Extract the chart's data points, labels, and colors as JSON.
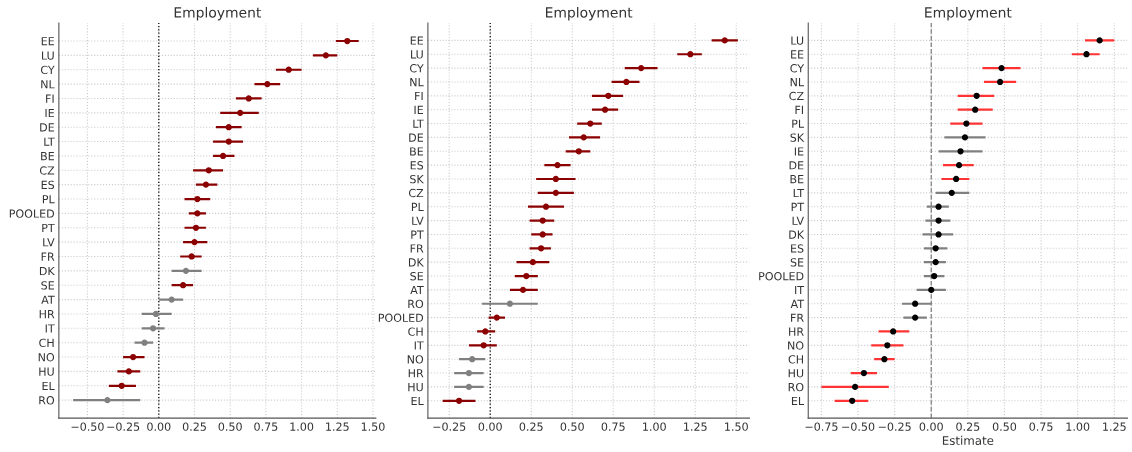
{
  "chart_data": [
    {
      "type": "scatter",
      "orientation": "horizontal",
      "title": "Employment",
      "marker": "circle",
      "grid": true,
      "categories": [
        "EE",
        "LU",
        "CY",
        "NL",
        "FI",
        "IE",
        "DE",
        "LT",
        "BE",
        "CZ",
        "ES",
        "PL",
        "POOLED",
        "PT",
        "LV",
        "FR",
        "DK",
        "SE",
        "AT",
        "HR",
        "IT",
        "CH",
        "NO",
        "HU",
        "EL",
        "RO"
      ],
      "xlim": [
        -0.7,
        1.52
      ],
      "xticks": [
        {
          "value": -0.5,
          "label": "−0.50"
        },
        {
          "value": -0.25,
          "label": "−0.25"
        },
        {
          "value": 0,
          "label": "0.00"
        },
        {
          "value": 0.25,
          "label": "0.25"
        },
        {
          "value": 0.5,
          "label": "0.50"
        },
        {
          "value": 0.75,
          "label": "0.75"
        },
        {
          "value": 1.0,
          "label": "1.00"
        },
        {
          "value": 1.25,
          "label": "1.25"
        },
        {
          "value": 1.5,
          "label": "1.50"
        }
      ],
      "ref_lines": [
        {
          "axis": "x",
          "value": 0,
          "color": "#000000",
          "line_style": "dotted"
        }
      ],
      "series": [
        {
          "values": [
            1.32,
            1.17,
            0.91,
            0.76,
            0.63,
            0.57,
            0.49,
            0.49,
            0.45,
            0.35,
            0.33,
            0.27,
            0.27,
            0.26,
            0.25,
            0.23,
            0.19,
            0.17,
            0.09,
            -0.02,
            -0.04,
            -0.1,
            -0.18,
            -0.21,
            -0.26,
            -0.36
          ],
          "errors": [
            [
              1.24,
              1.4
            ],
            [
              1.08,
              1.25
            ],
            [
              0.82,
              1.0
            ],
            [
              0.67,
              0.85
            ],
            [
              0.54,
              0.72
            ],
            [
              0.43,
              0.7
            ],
            [
              0.4,
              0.58
            ],
            [
              0.38,
              0.59
            ],
            [
              0.38,
              0.53
            ],
            [
              0.24,
              0.45
            ],
            [
              0.26,
              0.41
            ],
            [
              0.18,
              0.36
            ],
            [
              0.21,
              0.33
            ],
            [
              0.18,
              0.33
            ],
            [
              0.17,
              0.34
            ],
            [
              0.15,
              0.3
            ],
            [
              0.09,
              0.3
            ],
            [
              0.09,
              0.24
            ],
            [
              0.0,
              0.17
            ],
            [
              -0.12,
              0.09
            ],
            [
              -0.12,
              0.04
            ],
            [
              -0.17,
              -0.04
            ],
            [
              -0.25,
              -0.1
            ],
            [
              -0.29,
              -0.13
            ],
            [
              -0.35,
              -0.16
            ],
            [
              -0.6,
              -0.13
            ]
          ],
          "colors": [
            "#8b0000",
            "#8b0000",
            "#8b0000",
            "#8b0000",
            "#8b0000",
            "#8b0000",
            "#8b0000",
            "#8b0000",
            "#8b0000",
            "#8b0000",
            "#8b0000",
            "#8b0000",
            "#8b0000",
            "#8b0000",
            "#8b0000",
            "#8b0000",
            "#808080",
            "#8b0000",
            "#808080",
            "#808080",
            "#808080",
            "#808080",
            "#8b0000",
            "#8b0000",
            "#8b0000",
            "#808080"
          ]
        }
      ]
    },
    {
      "type": "scatter",
      "orientation": "horizontal",
      "title": "Employment",
      "marker": "circle",
      "grid": true,
      "categories": [
        "EE",
        "LU",
        "CY",
        "NL",
        "FI",
        "IE",
        "LT",
        "DE",
        "BE",
        "ES",
        "SK",
        "CZ",
        "PL",
        "LV",
        "PT",
        "FR",
        "DK",
        "SE",
        "AT",
        "RO",
        "POOLED",
        "CH",
        "IT",
        "NO",
        "HR",
        "HU",
        "EL"
      ],
      "xlim": [
        -0.38,
        1.58
      ],
      "xticks": [
        {
          "value": -0.25,
          "label": "−0.25"
        },
        {
          "value": 0,
          "label": "0.00"
        },
        {
          "value": 0.25,
          "label": "0.25"
        },
        {
          "value": 0.5,
          "label": "0.50"
        },
        {
          "value": 0.75,
          "label": "0.75"
        },
        {
          "value": 1.0,
          "label": "1.00"
        },
        {
          "value": 1.25,
          "label": "1.25"
        },
        {
          "value": 1.5,
          "label": "1.50"
        }
      ],
      "ref_lines": [
        {
          "axis": "x",
          "value": 0,
          "color": "#000000",
          "line_style": "dotted"
        }
      ],
      "series": [
        {
          "values": [
            1.43,
            1.22,
            0.92,
            0.83,
            0.72,
            0.7,
            0.61,
            0.57,
            0.54,
            0.41,
            0.4,
            0.4,
            0.34,
            0.32,
            0.32,
            0.31,
            0.26,
            0.22,
            0.2,
            0.12,
            0.04,
            -0.03,
            -0.04,
            -0.11,
            -0.13,
            -0.13,
            -0.19
          ],
          "errors": [
            [
              1.35,
              1.51
            ],
            [
              1.14,
              1.29
            ],
            [
              0.82,
              1.02
            ],
            [
              0.74,
              0.91
            ],
            [
              0.62,
              0.81
            ],
            [
              0.62,
              0.78
            ],
            [
              0.53,
              0.68
            ],
            [
              0.48,
              0.67
            ],
            [
              0.46,
              0.61
            ],
            [
              0.33,
              0.49
            ],
            [
              0.28,
              0.52
            ],
            [
              0.29,
              0.51
            ],
            [
              0.23,
              0.45
            ],
            [
              0.24,
              0.39
            ],
            [
              0.25,
              0.38
            ],
            [
              0.24,
              0.37
            ],
            [
              0.16,
              0.36
            ],
            [
              0.15,
              0.29
            ],
            [
              0.12,
              0.29
            ],
            [
              -0.05,
              0.29
            ],
            [
              -0.01,
              0.09
            ],
            [
              -0.08,
              0.03
            ],
            [
              -0.13,
              0.04
            ],
            [
              -0.19,
              -0.03
            ],
            [
              -0.22,
              -0.04
            ],
            [
              -0.22,
              -0.04
            ],
            [
              -0.29,
              -0.09
            ]
          ],
          "colors": [
            "#8b0000",
            "#8b0000",
            "#8b0000",
            "#8b0000",
            "#8b0000",
            "#8b0000",
            "#8b0000",
            "#8b0000",
            "#8b0000",
            "#8b0000",
            "#8b0000",
            "#8b0000",
            "#8b0000",
            "#8b0000",
            "#8b0000",
            "#8b0000",
            "#8b0000",
            "#8b0000",
            "#8b0000",
            "#808080",
            "#8b0000",
            "#8b0000",
            "#8b0000",
            "#808080",
            "#808080",
            "#808080",
            "#8b0000"
          ]
        }
      ]
    },
    {
      "type": "scatter",
      "orientation": "horizontal",
      "title": "Employment",
      "xlabel": "Estimate",
      "marker": "circle",
      "grid": true,
      "categories": [
        "LU",
        "EE",
        "CY",
        "NL",
        "CZ",
        "FI",
        "PL",
        "SK",
        "IE",
        "DE",
        "BE",
        "LT",
        "PT",
        "LV",
        "DK",
        "ES",
        "SE",
        "POOLED",
        "IT",
        "AT",
        "FR",
        "HR",
        "NO",
        "CH",
        "HU",
        "RO",
        "EL"
      ],
      "xlim": [
        -0.84,
        1.34
      ],
      "xticks": [
        {
          "value": -0.75,
          "label": "−0.75"
        },
        {
          "value": -0.5,
          "label": "−0.50"
        },
        {
          "value": -0.25,
          "label": "−0.25"
        },
        {
          "value": 0,
          "label": "0.00"
        },
        {
          "value": 0.25,
          "label": "0.25"
        },
        {
          "value": 0.5,
          "label": "0.50"
        },
        {
          "value": 0.75,
          "label": "0.75"
        },
        {
          "value": 1.0,
          "label": "1.00"
        },
        {
          "value": 1.25,
          "label": "1.25"
        }
      ],
      "ref_lines": [
        {
          "axis": "x",
          "value": 0,
          "color": "#808080",
          "line_style": "dashed"
        }
      ],
      "series": [
        {
          "color": "#ff3333",
          "colors": [
            "#000000",
            "#000000",
            "#000000",
            "#000000",
            "#000000",
            "#000000",
            "#000000",
            null,
            null,
            "#000000",
            "#000000",
            null,
            null,
            null,
            null,
            null,
            null,
            null,
            null,
            null,
            null,
            "#000000",
            "#000000",
            "#000000",
            "#000000",
            "#000000",
            "#000000"
          ],
          "values": [
            1.15,
            1.06,
            0.48,
            0.47,
            0.31,
            0.3,
            0.24,
            null,
            null,
            0.19,
            0.17,
            null,
            null,
            null,
            null,
            null,
            null,
            null,
            null,
            null,
            null,
            -0.26,
            -0.3,
            -0.32,
            -0.46,
            -0.52,
            -0.54
          ],
          "errors": [
            [
              1.05,
              1.25
            ],
            [
              0.96,
              1.15
            ],
            [
              0.35,
              0.61
            ],
            [
              0.36,
              0.58
            ],
            [
              0.18,
              0.43
            ],
            [
              0.18,
              0.42
            ],
            [
              0.13,
              0.35
            ],
            null,
            null,
            [
              0.08,
              0.29
            ],
            [
              0.07,
              0.26
            ],
            null,
            null,
            null,
            null,
            null,
            null,
            null,
            null,
            null,
            null,
            [
              -0.36,
              -0.15
            ],
            [
              -0.41,
              -0.19
            ],
            [
              -0.39,
              -0.25
            ],
            [
              -0.55,
              -0.37
            ],
            [
              -0.75,
              -0.29
            ],
            [
              -0.66,
              -0.43
            ]
          ]
        },
        {
          "color": "#808080",
          "colors": [
            null,
            null,
            null,
            null,
            null,
            null,
            null,
            "#000000",
            "#000000",
            null,
            null,
            "#000000",
            "#000000",
            "#000000",
            "#000000",
            "#000000",
            "#000000",
            "#000000",
            "#000000",
            "#000000",
            "#000000",
            null,
            null,
            null,
            null,
            null,
            null
          ],
          "values": [
            null,
            null,
            null,
            null,
            null,
            null,
            null,
            0.23,
            0.2,
            null,
            null,
            0.14,
            0.05,
            0.05,
            0.05,
            0.03,
            0.03,
            0.02,
            0.0,
            -0.11,
            -0.11,
            null,
            null,
            null,
            null,
            null,
            null
          ],
          "errors": [
            null,
            null,
            null,
            null,
            null,
            null,
            null,
            [
              0.09,
              0.37
            ],
            [
              0.05,
              0.35
            ],
            null,
            null,
            [
              0.03,
              0.26
            ],
            [
              -0.03,
              0.12
            ],
            [
              -0.04,
              0.13
            ],
            [
              -0.06,
              0.15
            ],
            [
              -0.05,
              0.11
            ],
            [
              -0.05,
              0.1
            ],
            [
              -0.05,
              0.09
            ],
            [
              -0.1,
              0.1
            ],
            [
              -0.2,
              0.0
            ],
            [
              -0.19,
              -0.03
            ],
            null,
            null,
            null,
            null,
            null,
            null
          ]
        }
      ]
    }
  ]
}
